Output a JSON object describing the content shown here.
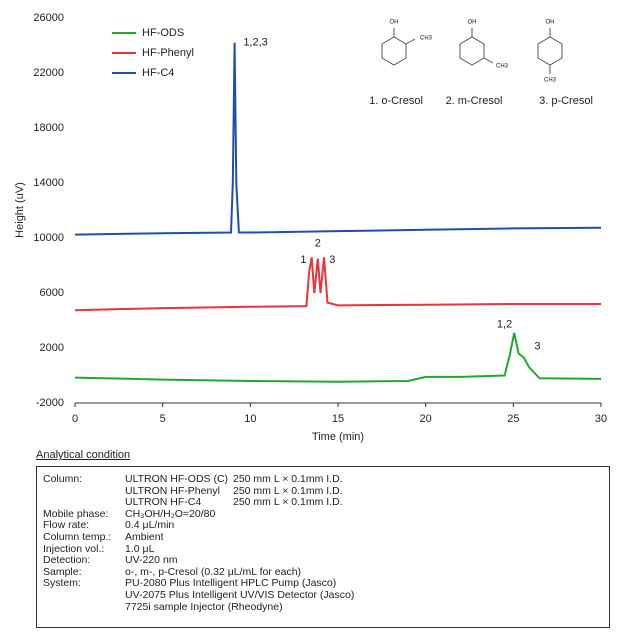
{
  "chart_data": {
    "type": "line",
    "ylabel": "Height (uV)",
    "xlabel": "Time (min)",
    "xlim": [
      0,
      30
    ],
    "xticks": [
      0,
      5,
      10,
      15,
      20,
      25,
      30
    ],
    "ylim": [
      -2000,
      26000
    ],
    "yticks": [
      -2000,
      2000,
      6000,
      10000,
      14000,
      18000,
      22000,
      26000
    ],
    "legend": "upper left",
    "series": [
      {
        "name": "HF-ODS",
        "color": "#22a832",
        "x": [
          0,
          5,
          10,
          15,
          19,
          20,
          22,
          24.5,
          24.8,
          25.05,
          25.3,
          25.6,
          25.9,
          26.5,
          30
        ],
        "values": [
          -150,
          -300,
          -400,
          -450,
          -400,
          -100,
          -100,
          0,
          1500,
          3100,
          1600,
          1300,
          600,
          -200,
          -250
        ]
      },
      {
        "name": "HF-Phenyl",
        "color": "#e8343c",
        "x": [
          0,
          5,
          10,
          13.2,
          13.35,
          13.5,
          13.65,
          13.85,
          14.0,
          14.2,
          14.4,
          15,
          20,
          25,
          30
        ],
        "values": [
          4750,
          4900,
          5000,
          5050,
          7500,
          8600,
          6000,
          8500,
          6000,
          8600,
          5300,
          5100,
          5150,
          5200,
          5200
        ]
      },
      {
        "name": "HF-C4",
        "color": "#1f4fa8",
        "x": [
          0,
          5,
          8.9,
          9.0,
          9.1,
          9.2,
          9.35,
          10,
          15,
          20,
          25,
          30
        ],
        "values": [
          10250,
          10350,
          10400,
          14000,
          24200,
          14000,
          10400,
          10400,
          10500,
          10600,
          10700,
          10750
        ]
      }
    ],
    "annotations": [
      "1,2,3",
      "1",
      "2",
      "3",
      "1,2",
      "3"
    ],
    "structures": [
      {
        "name": "1. o-Cresol",
        "groups": [
          "OH",
          "CH3"
        ]
      },
      {
        "name": "2. m-Cresol",
        "groups": [
          "OH",
          "CH3"
        ]
      },
      {
        "name": "3. p-Cresol",
        "groups": [
          "OH",
          "CH3"
        ]
      }
    ]
  },
  "conditions": {
    "title": "Analytical condition",
    "rows": [
      {
        "label": "Column:",
        "lines": [
          [
            "ULTRON HF-ODS (C)",
            "250 mm L × 0.1mm I.D."
          ],
          [
            "ULTRON HF-Phenyl",
            "250 mm L × 0.1mm I.D."
          ],
          [
            "ULTRON HF-C4",
            "250 mm L × 0.1mm I.D."
          ]
        ]
      },
      {
        "label": "Mobile phase:",
        "lines": [
          "CH₃OH/H₂O=20/80"
        ]
      },
      {
        "label": "Flow rate:",
        "lines": [
          "0.4 μL/min"
        ]
      },
      {
        "label": "Column temp.:",
        "lines": [
          "Ambient"
        ]
      },
      {
        "label": "Injection vol.:",
        "lines": [
          "1.0 μL"
        ]
      },
      {
        "label": "Detection:",
        "lines": [
          "UV-220 nm"
        ]
      },
      {
        "label": "Sample:",
        "lines": [
          "o-, m-, p-Cresol (0.32 μL/mL for each)"
        ]
      },
      {
        "label": "System:",
        "lines": [
          "PU-2080 Plus Intelligent HPLC Pump (Jasco)",
          "UV-2075 Plus Intelligent UV/VIS Detector (Jasco)",
          "7725i sample Injector (Rheodyne)"
        ]
      }
    ]
  }
}
